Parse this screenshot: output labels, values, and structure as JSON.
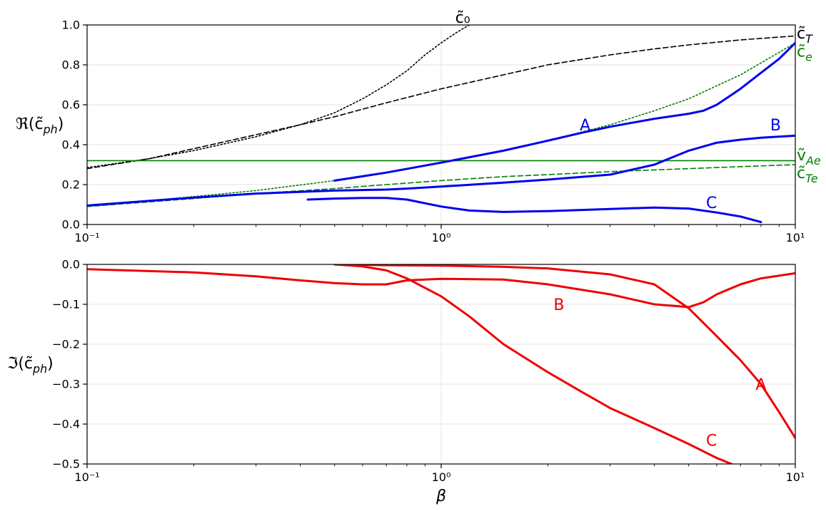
{
  "chart_data": [
    {
      "type": "line",
      "xscale": "log",
      "xlim": [
        0.1,
        10
      ],
      "ylim": [
        0.0,
        1.0
      ],
      "grid": true,
      "ylabel": "ℜ(c̃_ph)",
      "xticks": [
        "10⁻¹",
        "10⁰",
        "10¹"
      ],
      "yticks": [
        "0.0",
        "0.2",
        "0.4",
        "0.6",
        "0.8",
        "1.0"
      ],
      "series": [
        {
          "name": "c̃₀",
          "color": "#000000",
          "style": "dotted",
          "x": [
            0.1,
            0.15,
            0.2,
            0.3,
            0.4,
            0.5,
            0.6,
            0.7,
            0.8,
            0.9,
            1.0,
            1.1,
            1.2
          ],
          "y": [
            0.285,
            0.33,
            0.37,
            0.44,
            0.5,
            0.56,
            0.63,
            0.7,
            0.77,
            0.85,
            0.91,
            0.96,
            1.0
          ]
        },
        {
          "name": "c̃_T",
          "color": "#000000",
          "style": "dashed",
          "x": [
            0.1,
            0.15,
            0.2,
            0.3,
            0.4,
            0.5,
            0.7,
            1.0,
            1.5,
            2.0,
            3.0,
            4.0,
            5.0,
            7.0,
            10.0
          ],
          "y": [
            0.28,
            0.33,
            0.38,
            0.45,
            0.5,
            0.54,
            0.61,
            0.68,
            0.75,
            0.8,
            0.85,
            0.88,
            0.9,
            0.925,
            0.945
          ]
        },
        {
          "name": "c̃_e",
          "color": "#008000",
          "style": "dotted",
          "x": [
            0.1,
            0.2,
            0.3,
            0.5,
            0.7,
            1.0,
            1.5,
            2.0,
            3.0,
            4.0,
            5.0,
            7.0,
            10.0
          ],
          "y": [
            0.09,
            0.14,
            0.17,
            0.22,
            0.26,
            0.31,
            0.37,
            0.42,
            0.5,
            0.57,
            0.63,
            0.75,
            0.91
          ]
        },
        {
          "name": "ṽ_Ae",
          "color": "#008000",
          "style": "solid",
          "x": [
            0.1,
            10.0
          ],
          "y": [
            0.32,
            0.32
          ]
        },
        {
          "name": "c̃_Te",
          "color": "#008000",
          "style": "dashed",
          "x": [
            0.1,
            0.2,
            0.3,
            0.5,
            0.7,
            1.0,
            1.5,
            2.0,
            3.0,
            5.0,
            7.0,
            10.0
          ],
          "y": [
            0.09,
            0.13,
            0.155,
            0.18,
            0.2,
            0.22,
            0.24,
            0.25,
            0.265,
            0.28,
            0.29,
            0.3
          ]
        },
        {
          "name": "A",
          "color": "#0000ee",
          "style": "solid",
          "x": [
            0.5,
            0.7,
            1.0,
            1.5,
            2.0,
            2.5,
            3.0,
            4.0,
            5.0,
            5.5,
            6.0,
            7.0,
            8.0,
            9.0,
            10.0
          ],
          "y": [
            0.22,
            0.26,
            0.31,
            0.37,
            0.42,
            0.46,
            0.49,
            0.53,
            0.555,
            0.57,
            0.6,
            0.68,
            0.76,
            0.83,
            0.91
          ]
        },
        {
          "name": "B",
          "color": "#0000ee",
          "style": "solid",
          "x": [
            0.1,
            0.2,
            0.3,
            0.5,
            0.7,
            0.8,
            1.0,
            1.5,
            2.0,
            3.0,
            4.0,
            5.0,
            6.0,
            7.0,
            8.0,
            10.0
          ],
          "y": [
            0.095,
            0.135,
            0.155,
            0.17,
            0.175,
            0.18,
            0.19,
            0.21,
            0.225,
            0.25,
            0.3,
            0.37,
            0.41,
            0.425,
            0.435,
            0.445
          ]
        },
        {
          "name": "C",
          "color": "#0000ee",
          "style": "solid",
          "x": [
            0.42,
            0.5,
            0.6,
            0.7,
            0.8,
            1.0,
            1.2,
            1.5,
            2.0,
            3.0,
            4.0,
            5.0,
            6.0,
            7.0,
            8.0
          ],
          "y": [
            0.125,
            0.13,
            0.133,
            0.133,
            0.125,
            0.09,
            0.07,
            0.063,
            0.067,
            0.078,
            0.085,
            0.08,
            0.06,
            0.04,
            0.012
          ]
        }
      ],
      "annotations": [
        {
          "text": "c̃₀",
          "x": 1.15,
          "y": 1.04,
          "color": "#000000"
        },
        {
          "text": "c̃_T",
          "x": 10.0,
          "y": 0.96,
          "color": "#000000"
        },
        {
          "text": "c̃_e",
          "x": 10.0,
          "y": 0.87,
          "color": "#008000"
        },
        {
          "text": "ṽ_Ae",
          "x": 10.0,
          "y": 0.35,
          "color": "#008000"
        },
        {
          "text": "c̃_Te",
          "x": 10.0,
          "y": 0.26,
          "color": "#008000"
        },
        {
          "text": "A",
          "x": 2.55,
          "y": 0.5,
          "color": "#0000ee"
        },
        {
          "text": "B",
          "x": 8.8,
          "y": 0.5,
          "color": "#0000ee"
        },
        {
          "text": "C",
          "x": 5.8,
          "y": 0.11,
          "color": "#0000ee"
        }
      ]
    },
    {
      "type": "line",
      "xscale": "log",
      "xlim": [
        0.1,
        10
      ],
      "ylim": [
        -0.5,
        0.0
      ],
      "grid": true,
      "ylabel": "ℑ(c̃_ph)",
      "xlabel": "β",
      "xticks": [
        "10⁻¹",
        "10⁰",
        "10¹"
      ],
      "yticks": [
        "0.0",
        "−0.1",
        "−0.2",
        "−0.3",
        "−0.4",
        "−0.5"
      ],
      "series": [
        {
          "name": "A",
          "color": "#ee0000",
          "style": "solid",
          "x": [
            0.5,
            0.7,
            1.0,
            1.5,
            2.0,
            3.0,
            4.0,
            5.0,
            6.0,
            7.0,
            8.0,
            9.0,
            10.0
          ],
          "y": [
            0.0,
            -0.002,
            -0.003,
            -0.006,
            -0.01,
            -0.025,
            -0.05,
            -0.11,
            -0.18,
            -0.24,
            -0.3,
            -0.37,
            -0.435
          ]
        },
        {
          "name": "B",
          "color": "#ee0000",
          "style": "solid",
          "x": [
            0.1,
            0.2,
            0.3,
            0.4,
            0.5,
            0.6,
            0.7,
            0.8,
            1.0,
            1.5,
            2.0,
            3.0,
            4.0,
            5.0,
            5.5,
            6.0,
            7.0,
            8.0,
            10.0
          ],
          "y": [
            -0.012,
            -0.02,
            -0.03,
            -0.04,
            -0.047,
            -0.05,
            -0.05,
            -0.04,
            -0.036,
            -0.038,
            -0.05,
            -0.075,
            -0.1,
            -0.107,
            -0.095,
            -0.075,
            -0.05,
            -0.035,
            -0.022
          ]
        },
        {
          "name": "C",
          "color": "#ee0000",
          "style": "solid",
          "x": [
            0.5,
            0.6,
            0.7,
            0.8,
            1.0,
            1.2,
            1.5,
            2.0,
            2.5,
            3.0,
            4.0,
            5.0,
            6.0,
            6.6
          ],
          "y": [
            0.0,
            -0.005,
            -0.015,
            -0.035,
            -0.08,
            -0.13,
            -0.2,
            -0.27,
            -0.32,
            -0.36,
            -0.41,
            -0.45,
            -0.485,
            -0.5
          ]
        }
      ],
      "annotations": [
        {
          "text": "A",
          "x": 8.0,
          "y": -0.3,
          "color": "#ee0000"
        },
        {
          "text": "B",
          "x": 2.15,
          "y": -0.1,
          "color": "#ee0000"
        },
        {
          "text": "C",
          "x": 5.8,
          "y": -0.44,
          "color": "#ee0000"
        }
      ]
    }
  ]
}
